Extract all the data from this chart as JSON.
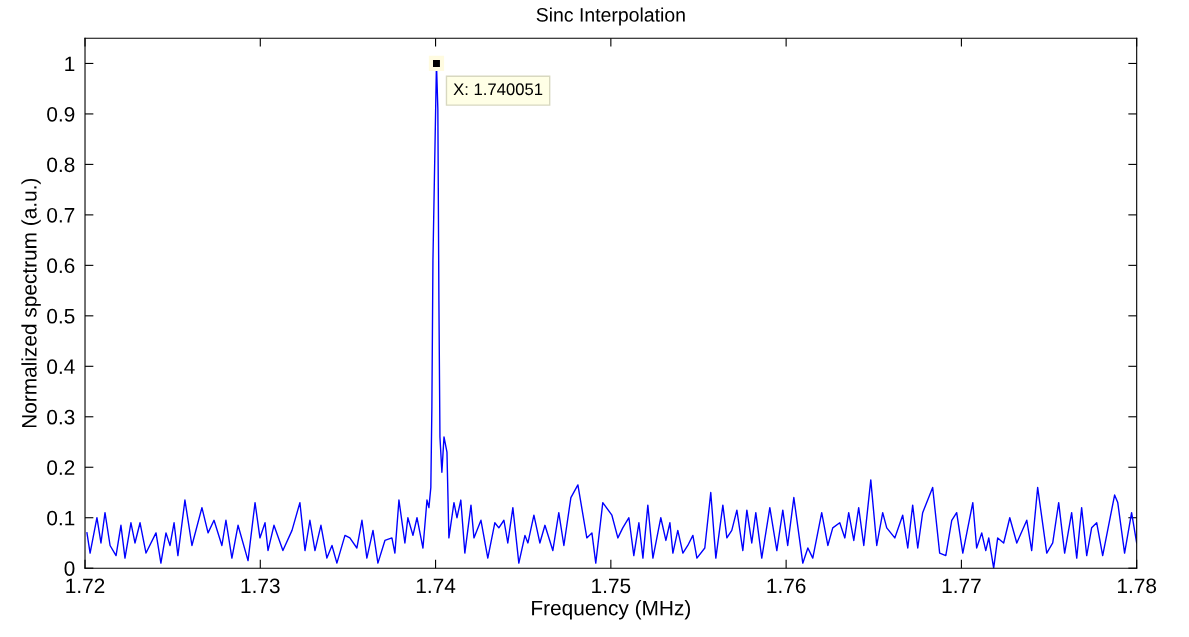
{
  "chart_data": {
    "type": "line",
    "title": "Sinc Interpolation",
    "xlabel": "Frequency (MHz)",
    "ylabel": "Normalized spectrum (a.u.)",
    "xlim": [
      1.72,
      1.78
    ],
    "ylim": [
      0,
      1.05
    ],
    "xticks": [
      1.72,
      1.73,
      1.74,
      1.75,
      1.76,
      1.77,
      1.78
    ],
    "yticks": [
      0,
      0.1,
      0.2,
      0.3,
      0.4,
      0.5,
      0.6,
      0.7,
      0.8,
      0.9,
      1
    ],
    "grid": false,
    "marker": "none",
    "line_style": "solid",
    "annotations": [
      {
        "text": "X: 1.740051",
        "x": 1.740051,
        "y": 1
      }
    ],
    "series": [
      {
        "color": "#0000ff",
        "x": [
          1.72011,
          1.72029,
          1.72068,
          1.72091,
          1.72114,
          1.72143,
          1.72177,
          1.72205,
          1.72228,
          1.72262,
          1.72285,
          1.72314,
          1.72348,
          1.72405,
          1.72433,
          1.72462,
          1.72485,
          1.72508,
          1.7253,
          1.7257,
          1.7261,
          1.72667,
          1.72702,
          1.72736,
          1.72781,
          1.72804,
          1.72838,
          1.72873,
          1.7293,
          1.7297,
          1.72998,
          1.73027,
          1.73044,
          1.73078,
          1.73129,
          1.73181,
          1.73226,
          1.73255,
          1.73283,
          1.73312,
          1.73346,
          1.7338,
          1.73409,
          1.73437,
          1.73483,
          1.73511,
          1.73551,
          1.7358,
          1.73608,
          1.73643,
          1.73671,
          1.73711,
          1.73751,
          1.73768,
          1.73791,
          1.73825,
          1.73842,
          1.73871,
          1.73894,
          1.73928,
          1.73951,
          1.73962,
          1.73973,
          1.73979,
          1.73985,
          1.740051,
          1.74013,
          1.74019,
          1.74025,
          1.74036,
          1.74048,
          1.74065,
          1.74076,
          1.74105,
          1.74122,
          1.74144,
          1.74167,
          1.74202,
          1.74219,
          1.74259,
          1.74298,
          1.74338,
          1.74361,
          1.7439,
          1.74412,
          1.74441,
          1.74475,
          1.7451,
          1.74527,
          1.74561,
          1.74595,
          1.74624,
          1.74669,
          1.74703,
          1.74732,
          1.74772,
          1.74812,
          1.74863,
          1.74892,
          1.74914,
          1.74954,
          1.75006,
          1.7504,
          1.75068,
          1.75103,
          1.75131,
          1.7516,
          1.75183,
          1.75211,
          1.7524,
          1.75285,
          1.75314,
          1.75337,
          1.75354,
          1.75382,
          1.75411,
          1.75439,
          1.75468,
          1.75491,
          1.75536,
          1.7557,
          1.75599,
          1.75639,
          1.75662,
          1.7569,
          1.75719,
          1.75753,
          1.75776,
          1.75804,
          1.75827,
          1.75861,
          1.75907,
          1.75947,
          1.75981,
          1.76009,
          1.76044,
          1.76095,
          1.76124,
          1.76152,
          1.76203,
          1.76238,
          1.76266,
          1.76306,
          1.76335,
          1.76357,
          1.76386,
          1.76414,
          1.76443,
          1.76483,
          1.76517,
          1.76551,
          1.76574,
          1.7662,
          1.76665,
          1.76694,
          1.76722,
          1.76751,
          1.76779,
          1.76836,
          1.76876,
          1.76911,
          1.76945,
          1.76973,
          1.77008,
          1.77065,
          1.77087,
          1.77116,
          1.77139,
          1.77156,
          1.77184,
          1.77207,
          1.77241,
          1.77276,
          1.77316,
          1.77373,
          1.77401,
          1.77435,
          1.77487,
          1.77521,
          1.77555,
          1.77589,
          1.77629,
          1.77658,
          1.77686,
          1.77715,
          1.77743,
          1.77772,
          1.77806,
          1.77874,
          1.77892,
          1.77931,
          1.77971,
          1.78
        ],
        "values": [
          0.07,
          0.03,
          0.1,
          0.05,
          0.11,
          0.045,
          0.025,
          0.085,
          0.02,
          0.09,
          0.05,
          0.09,
          0.03,
          0.07,
          0.01,
          0.07,
          0.045,
          0.09,
          0.025,
          0.135,
          0.045,
          0.12,
          0.07,
          0.095,
          0.045,
          0.095,
          0.02,
          0.085,
          0.015,
          0.13,
          0.06,
          0.09,
          0.035,
          0.085,
          0.035,
          0.075,
          0.13,
          0.035,
          0.095,
          0.035,
          0.085,
          0.02,
          0.045,
          0.01,
          0.065,
          0.06,
          0.04,
          0.095,
          0.02,
          0.075,
          0.01,
          0.055,
          0.06,
          0.03,
          0.135,
          0.05,
          0.1,
          0.065,
          0.1,
          0.04,
          0.135,
          0.12,
          0.16,
          0.32,
          0.61,
          1,
          0.91,
          0.53,
          0.26,
          0.19,
          0.26,
          0.23,
          0.06,
          0.13,
          0.1,
          0.135,
          0.03,
          0.125,
          0.06,
          0.095,
          0.02,
          0.09,
          0.08,
          0.095,
          0.05,
          0.12,
          0.01,
          0.065,
          0.05,
          0.105,
          0.05,
          0.085,
          0.035,
          0.11,
          0.045,
          0.14,
          0.165,
          0.06,
          0.07,
          0.01,
          0.13,
          0.105,
          0.06,
          0.08,
          0.1,
          0.025,
          0.09,
          0.02,
          0.125,
          0.02,
          0.1,
          0.055,
          0.09,
          0.03,
          0.075,
          0.03,
          0.045,
          0.065,
          0.02,
          0.04,
          0.15,
          0.02,
          0.125,
          0.06,
          0.075,
          0.115,
          0.035,
          0.115,
          0.05,
          0.11,
          0.02,
          0.12,
          0.035,
          0.115,
          0.045,
          0.14,
          0.01,
          0.04,
          0.02,
          0.11,
          0.045,
          0.08,
          0.09,
          0.06,
          0.11,
          0.055,
          0.12,
          0.045,
          0.175,
          0.045,
          0.11,
          0.08,
          0.06,
          0.105,
          0.04,
          0.125,
          0.04,
          0.11,
          0.16,
          0.03,
          0.025,
          0.095,
          0.11,
          0.03,
          0.13,
          0.04,
          0.07,
          0.035,
          0.06,
          0.0,
          0.06,
          0.05,
          0.1,
          0.05,
          0.095,
          0.035,
          0.16,
          0.03,
          0.05,
          0.13,
          0.03,
          0.11,
          0.02,
          0.12,
          0.025,
          0.08,
          0.09,
          0.025,
          0.145,
          0.13,
          0.03,
          0.11,
          0.05
        ]
      }
    ]
  }
}
